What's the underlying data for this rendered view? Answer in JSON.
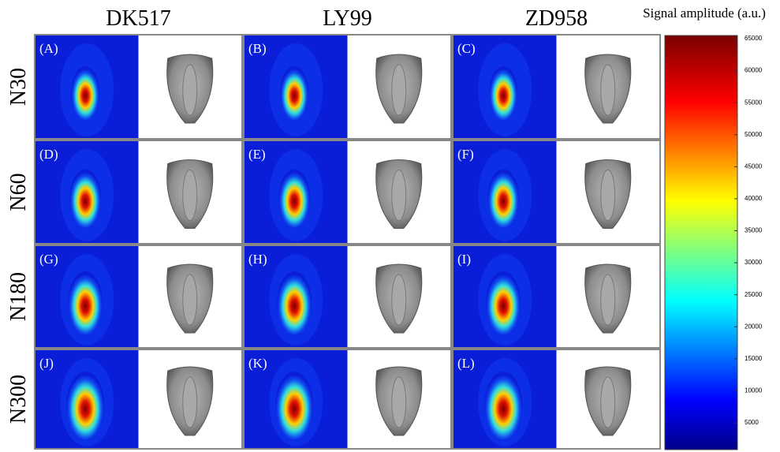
{
  "columns": [
    "DK517",
    "LY99",
    "ZD958"
  ],
  "rows": [
    "N30",
    "N60",
    "N180",
    "N300"
  ],
  "panels": [
    [
      "(A)",
      "(B)",
      "(C)"
    ],
    [
      "(D)",
      "(E)",
      "(F)"
    ],
    [
      "(G)",
      "(H)",
      "(I)"
    ],
    [
      "(J)",
      "(K)",
      "(L)"
    ]
  ],
  "colorbar": {
    "title": "Signal amplitude (a.u.)",
    "ticks": [
      5000,
      10000,
      15000,
      20000,
      25000,
      30000,
      35000,
      40000,
      45000,
      50000,
      55000,
      60000,
      65000
    ]
  }
}
